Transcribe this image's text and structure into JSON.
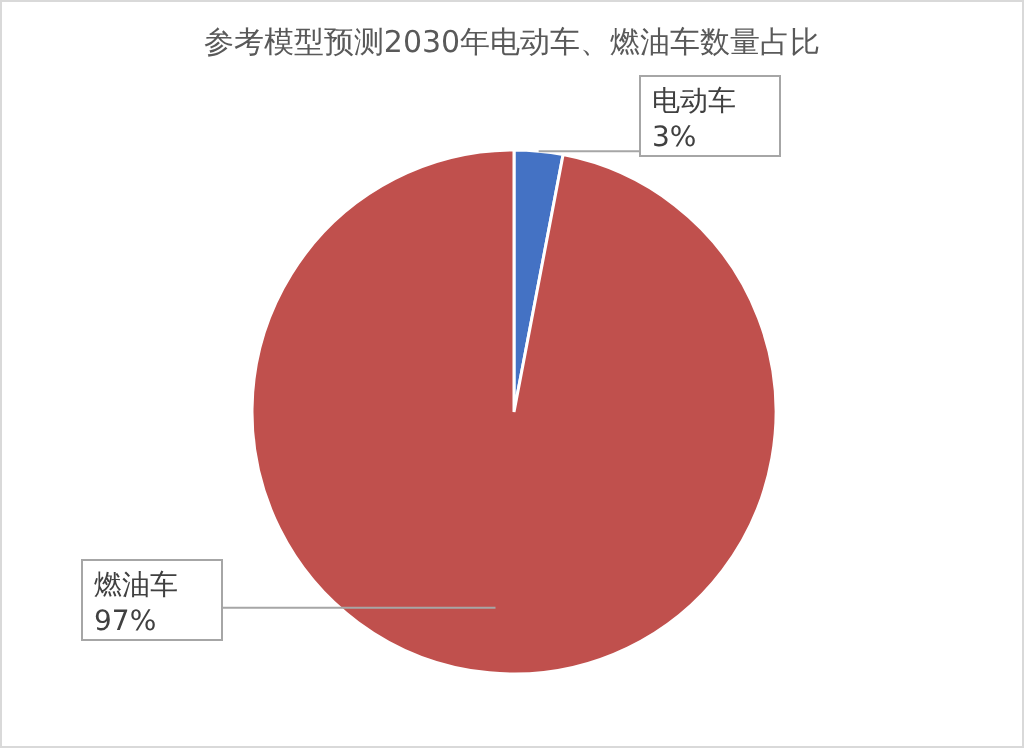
{
  "chart_data": {
    "type": "pie",
    "title": "参考模型预测2030年电动车、燃油车数量占比",
    "categories": [
      "电动车",
      "燃油车"
    ],
    "values": [
      3,
      97
    ],
    "value_labels": [
      "3%",
      "97%"
    ],
    "colors": [
      "#4472c4",
      "#c0504d"
    ],
    "legend": false
  }
}
